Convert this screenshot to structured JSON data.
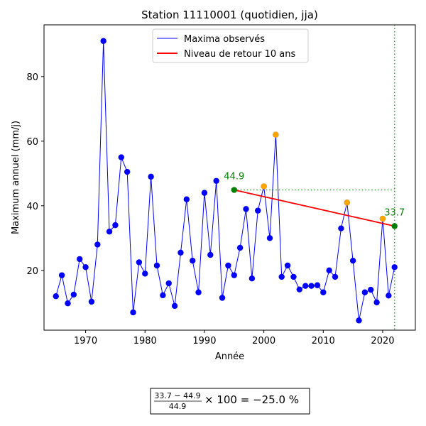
{
  "chart_data": {
    "type": "line",
    "title": "Station 11110001 (quotidien, jja)",
    "xlabel": "Année",
    "ylabel": "Maximum annuel (mm/j)",
    "xlim": [
      1963,
      2025.5
    ],
    "ylim": [
      1.5,
      96
    ],
    "xticks": [
      1970,
      1980,
      1990,
      2000,
      2010,
      2020
    ],
    "yticks": [
      20,
      40,
      60,
      80
    ],
    "grid": false,
    "legend_position": "top-center",
    "series": [
      {
        "name": "Maxima observés",
        "color": "#0000ff",
        "x": [
          1965,
          1966,
          1967,
          1968,
          1969,
          1970,
          1971,
          1972,
          1973,
          1974,
          1975,
          1976,
          1977,
          1978,
          1979,
          1980,
          1981,
          1982,
          1983,
          1984,
          1985,
          1986,
          1987,
          1988,
          1989,
          1990,
          1991,
          1992,
          1993,
          1994,
          1995,
          1996,
          1997,
          1998,
          1999,
          2000,
          2001,
          2002,
          2003,
          2004,
          2005,
          2006,
          2007,
          2008,
          2009,
          2010,
          2011,
          2012,
          2013,
          2014,
          2015,
          2016,
          2017,
          2018,
          2019,
          2020,
          2021,
          2022
        ],
        "y": [
          12,
          18.5,
          9.8,
          12.5,
          23.5,
          21,
          10.3,
          28,
          91,
          32,
          34,
          55,
          50.5,
          7,
          22.5,
          19,
          49,
          21.5,
          12.3,
          16,
          9,
          25.5,
          42,
          23,
          13.2,
          44,
          24.8,
          47.7,
          11.5,
          21.5,
          18.5,
          27,
          39,
          17.5,
          38.5,
          46,
          30,
          62,
          18,
          21.5,
          18,
          14.1,
          15.2,
          15.2,
          15.4,
          13.2,
          20,
          18,
          33,
          41,
          23,
          4.5,
          13.2,
          14,
          10.1,
          36,
          12.2,
          21
        ]
      },
      {
        "name": "Niveau de retour 10 ans",
        "color": "#ff0000",
        "x": [
          1995,
          2022
        ],
        "y": [
          44.9,
          33.7
        ]
      }
    ],
    "highlighted_points": [
      {
        "x": 2000,
        "y": 46,
        "color": "#ffa500"
      },
      {
        "x": 2002,
        "y": 62,
        "color": "#ffa500"
      },
      {
        "x": 2014,
        "y": 41,
        "color": "#ffa500"
      },
      {
        "x": 2020,
        "y": 36,
        "color": "#ffa500"
      }
    ],
    "endpoints": [
      {
        "x": 1995,
        "y": 44.9,
        "label": "44.9",
        "color": "#008000"
      },
      {
        "x": 2022,
        "y": 33.7,
        "label": "33.7",
        "color": "#008000"
      }
    ],
    "reference_lines": {
      "horizontal_y": 44.9,
      "vertical_x": 2022,
      "color": "#2ca02c"
    },
    "annotation_color": "#008000"
  },
  "formula": {
    "numerator": "33.7 − 44.9",
    "denominator": "44.9",
    "suffix": "× 100 = −25.0 %"
  }
}
